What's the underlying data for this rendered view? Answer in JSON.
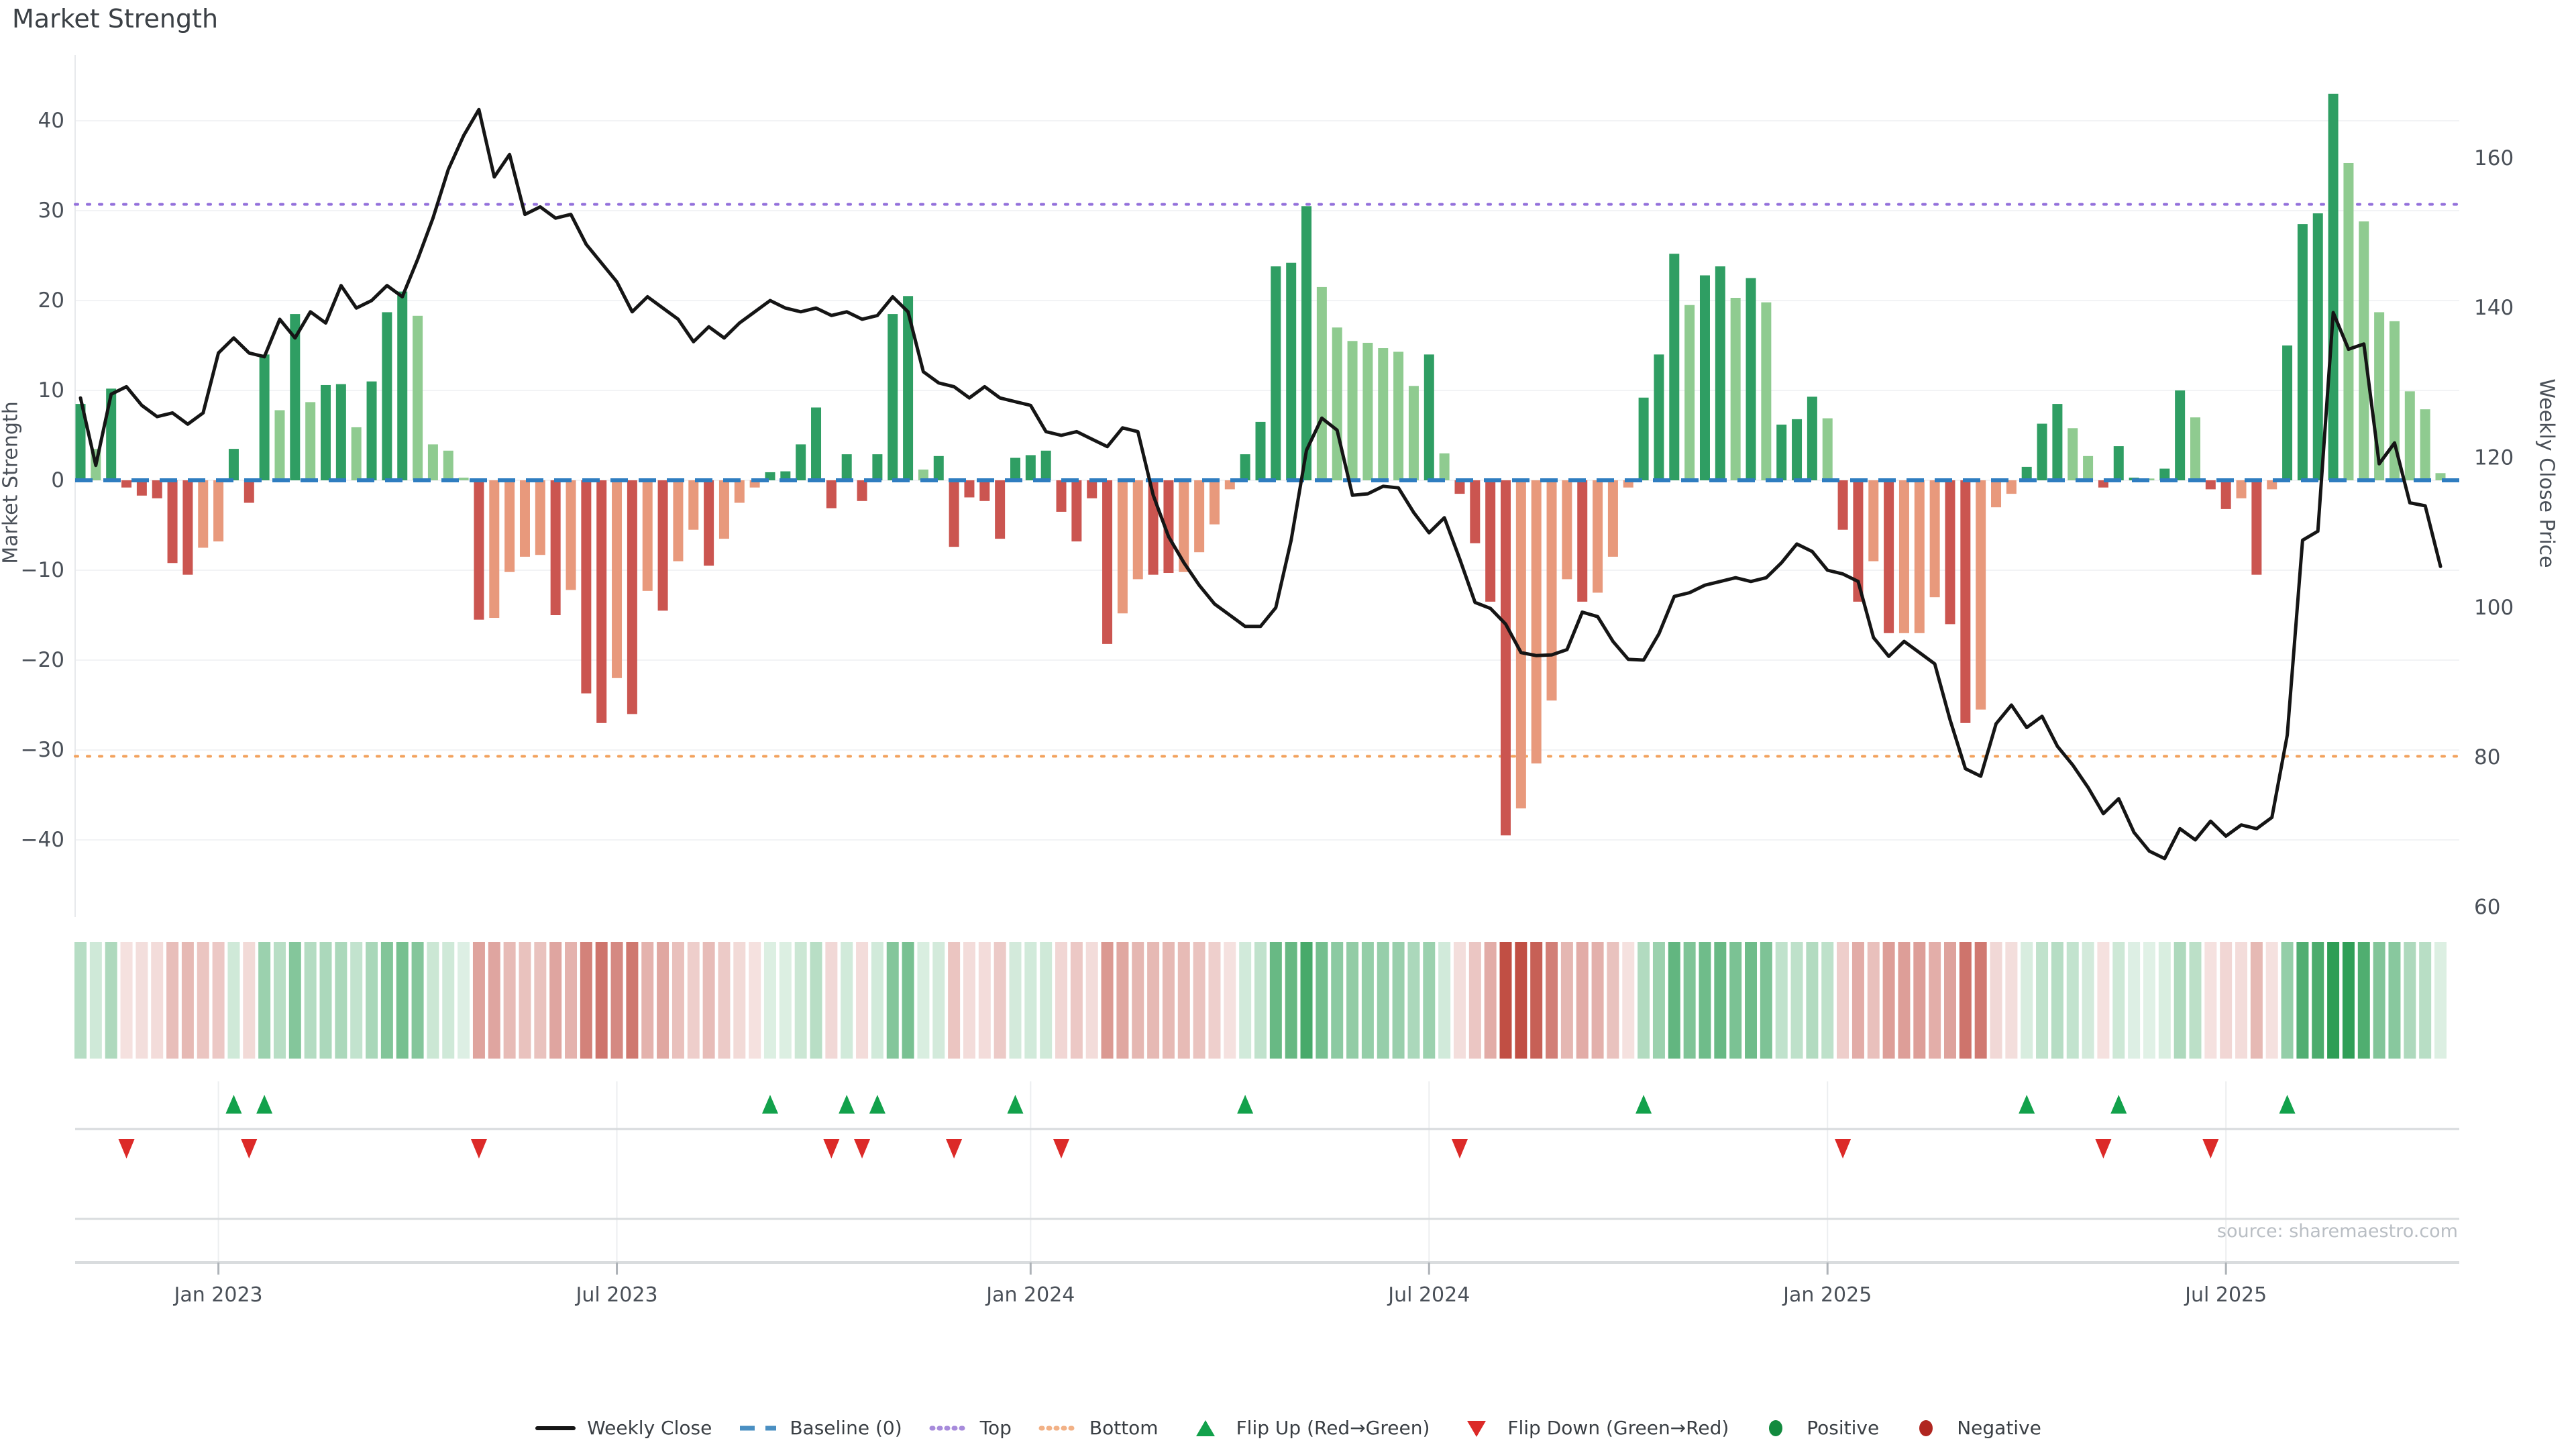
{
  "title": "Market Strength",
  "source": "source: sharemaestro.com",
  "colors": {
    "bar_pos_strong": "#2f9e63",
    "bar_pos_light": "#8fcb90",
    "bar_neg_strong": "#cb5550",
    "bar_neg_light": "#e8997c",
    "price_line": "#151515",
    "baseline": "#2f7dc0",
    "top_line": "#9370db",
    "bottom_line": "#f2a25e",
    "flip_up": "#12a14b",
    "flip_down": "#dc2a28",
    "dot_positive": "#128a3e",
    "dot_negative": "#b02620",
    "heat_pos": "#2e9e55",
    "heat_neg": "#c14f44",
    "grid": "#f2f3f5",
    "spine": "#e7e9ec",
    "panel_line": "#d9dcde",
    "tick_text": "#4a5058",
    "axis_tick": "#aeb3b8"
  },
  "legend": [
    {
      "label": "Weekly Close",
      "swatch": "line",
      "color": "#151515"
    },
    {
      "label": "Baseline (0)",
      "swatch": "dashes",
      "color": "#4a8fc2"
    },
    {
      "label": "Top",
      "swatch": "dots",
      "color": "#a78bdb"
    },
    {
      "label": "Bottom",
      "swatch": "dots",
      "color": "#f2b186"
    },
    {
      "label": "Flip Up (Red→Green)",
      "swatch": "triangle-up",
      "color": "#12a14b"
    },
    {
      "label": "Flip Down (Green→Red)",
      "swatch": "triangle-down",
      "color": "#dc2a28"
    },
    {
      "label": "Positive",
      "swatch": "dot",
      "color": "#128a3e"
    },
    {
      "label": "Negative",
      "swatch": "dot",
      "color": "#b02620"
    }
  ],
  "chart_data": {
    "type": "bar",
    "subtype": "weekly bar + line combo with heatmap and flip markers",
    "title": "Market Strength",
    "x_unit": "week",
    "x_range_note": "weekly data, Nov 2022 - Oct 2025",
    "x_ticks": [
      {
        "index": 9,
        "label": "Jan 2023"
      },
      {
        "index": 35,
        "label": "Jul 2023"
      },
      {
        "index": 62,
        "label": "Jan 2024"
      },
      {
        "index": 88,
        "label": "Jul 2024"
      },
      {
        "index": 114,
        "label": "Jan 2025"
      },
      {
        "index": 140,
        "label": "Jul 2025"
      }
    ],
    "left_axis": {
      "label": "Market Strength",
      "ticks": [
        -40,
        -30,
        -20,
        -10,
        0,
        10,
        20,
        30,
        40
      ],
      "min": -47.5,
      "max": 47.5
    },
    "right_axis": {
      "label": "Weekly Close Price",
      "ticks": [
        60,
        80,
        100,
        120,
        140,
        160
      ],
      "baseline_price": 117,
      "price_units_per_strength_unit": 1.2
    },
    "reference_lines": {
      "baseline": 0,
      "top": 30.7,
      "bottom": -30.7
    },
    "series": [
      {
        "name": "Market Strength",
        "type": "bar",
        "axis": "left",
        "values": [
          8.5,
          3.5,
          10.2,
          -0.8,
          -1.7,
          -2.0,
          -9.2,
          -10.5,
          -7.5,
          -6.8,
          3.5,
          -2.5,
          14.0,
          7.8,
          18.5,
          8.7,
          10.6,
          10.7,
          5.9,
          11.0,
          18.7,
          21.0,
          18.3,
          4.0,
          3.3,
          0.3,
          -15.5,
          -15.3,
          -10.2,
          -8.5,
          -8.3,
          -15.0,
          -12.2,
          -23.7,
          -27.0,
          -22.0,
          -26.0,
          -12.3,
          -14.5,
          -9.0,
          -5.5,
          -9.5,
          -6.5,
          -2.5,
          -0.8,
          0.9,
          1.0,
          4.0,
          8.1,
          -3.1,
          2.9,
          -2.3,
          2.9,
          18.5,
          20.5,
          1.2,
          2.7,
          -7.4,
          -1.9,
          -2.3,
          -6.5,
          2.5,
          2.8,
          3.3,
          -3.5,
          -6.8,
          -2.0,
          -18.2,
          -14.8,
          -11.0,
          -10.5,
          -10.3,
          -10.2,
          -8.0,
          -4.9,
          -1.0,
          2.9,
          6.5,
          23.8,
          24.2,
          30.5,
          21.5,
          17.0,
          15.5,
          15.3,
          14.7,
          14.3,
          10.5,
          14.0,
          3.0,
          -1.5,
          -7.0,
          -13.5,
          -39.5,
          -36.5,
          -31.5,
          -24.5,
          -11.0,
          -13.5,
          -12.5,
          -8.5,
          -0.8,
          9.2,
          14.0,
          25.2,
          19.5,
          22.8,
          23.8,
          20.3,
          22.5,
          19.8,
          6.2,
          6.8,
          9.3,
          6.9,
          -5.5,
          -13.5,
          -9.0,
          -17.0,
          -17.0,
          -17.0,
          -13.0,
          -16.0,
          -27.0,
          -25.5,
          -3.0,
          -1.5,
          1.5,
          6.3,
          8.5,
          5.8,
          2.7,
          -0.8,
          3.8,
          0.3,
          0.2,
          1.3,
          10.0,
          7.0,
          -1.0,
          -3.2,
          -2.0,
          -10.5,
          -1.0,
          15.0,
          28.5,
          29.7,
          43.0,
          35.3,
          28.8,
          18.7,
          17.7,
          9.9,
          7.9,
          0.8
        ],
        "strong_shade": [
          1,
          0,
          1,
          1,
          1,
          1,
          1,
          1,
          0,
          0,
          1,
          1,
          1,
          0,
          1,
          0,
          1,
          1,
          0,
          1,
          1,
          1,
          0,
          0,
          0,
          0,
          1,
          0,
          0,
          0,
          0,
          1,
          0,
          1,
          1,
          0,
          1,
          0,
          1,
          0,
          0,
          1,
          0,
          0,
          0,
          1,
          1,
          1,
          1,
          1,
          1,
          1,
          1,
          1,
          1,
          0,
          1,
          1,
          1,
          1,
          1,
          1,
          1,
          1,
          1,
          1,
          1,
          1,
          0,
          0,
          1,
          1,
          0,
          0,
          0,
          0,
          1,
          1,
          1,
          1,
          1,
          0,
          0,
          0,
          0,
          0,
          0,
          0,
          1,
          0,
          1,
          1,
          1,
          1,
          0,
          0,
          0,
          0,
          1,
          0,
          0,
          0,
          1,
          1,
          1,
          0,
          1,
          1,
          0,
          1,
          0,
          1,
          1,
          1,
          0,
          1,
          1,
          0,
          1,
          0,
          0,
          0,
          1,
          1,
          0,
          0,
          0,
          1,
          1,
          1,
          0,
          0,
          1,
          1,
          1,
          0,
          1,
          1,
          0,
          1,
          1,
          0,
          1,
          0,
          1,
          1,
          1,
          1,
          0,
          0,
          0,
          0,
          0,
          0,
          0
        ]
      },
      {
        "name": "Weekly Close",
        "type": "line",
        "axis": "right",
        "values": [
          128,
          119,
          128.5,
          129.5,
          127,
          125.5,
          126,
          124.5,
          126,
          134,
          136,
          134,
          133.5,
          138.5,
          136,
          139.5,
          138,
          143,
          140,
          141,
          143,
          141.5,
          146.5,
          152,
          158.5,
          163,
          166.5,
          157.5,
          160.5,
          152.5,
          153.5,
          152,
          152.5,
          148.5,
          146,
          143.5,
          139.5,
          141.5,
          140,
          138.5,
          135.5,
          137.5,
          136,
          138,
          139.5,
          141,
          140,
          139.5,
          140,
          139,
          139.5,
          138.5,
          139,
          141.5,
          139.5,
          131.5,
          130,
          129.5,
          128,
          129.5,
          128,
          127.5,
          127,
          123.5,
          123,
          123.5,
          122.5,
          121.5,
          124,
          123.5,
          115,
          109.5,
          106,
          103,
          100.5,
          99,
          97.5,
          97.5,
          100,
          109,
          121,
          125.3,
          123.7,
          115,
          115.2,
          116.2,
          116,
          112.7,
          110,
          112,
          106.5,
          100.7,
          99.9,
          97.8,
          94,
          93.6,
          93.7,
          94.4,
          99.4,
          98.8,
          95.5,
          93.1,
          93,
          96.5,
          101.5,
          102,
          103,
          103.5,
          104,
          103.5,
          104,
          106,
          108.5,
          107.5,
          105,
          104.5,
          103.5,
          96,
          93.5,
          95.5,
          94,
          92.5,
          85,
          78.5,
          77.5,
          84.5,
          87,
          84,
          85.5,
          81.5,
          79,
          76,
          72.5,
          74.5,
          70,
          67.5,
          66.5,
          70.5,
          69,
          71.5,
          69.5,
          71,
          70.5,
          72,
          83,
          109,
          110.2,
          139.4,
          134.5,
          135.2,
          119.2,
          122,
          114,
          113.6,
          105.5
        ]
      }
    ],
    "flip_up_weeks": [
      10,
      12,
      45,
      50,
      52,
      61,
      76,
      102,
      127,
      133,
      144
    ],
    "flip_down_weeks": [
      3,
      11,
      26,
      49,
      51,
      57,
      64,
      90,
      115,
      132,
      139
    ],
    "heatmap": {
      "description": "strength heatmap strip, color = sign, opacity = |value|",
      "mirrors": "Market Strength"
    },
    "legend_position": "bottom center",
    "grid": "horizontal faint"
  }
}
